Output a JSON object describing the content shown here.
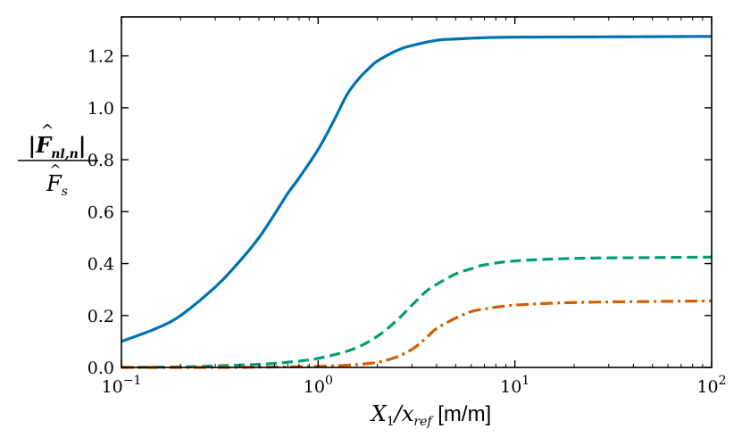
{
  "chart_data": {
    "type": "line",
    "xscale": "log",
    "xlim": [
      0.1,
      100
    ],
    "ylim": [
      0.0,
      1.35
    ],
    "xlabel": {
      "main": "X",
      "sub1": "1",
      "slash": "/x",
      "sub2": "ref",
      "unit": "[m/m]"
    },
    "ylabel": {
      "numerator": "|F",
      "numerator_sub": "nl,n",
      "numerator_close": "|",
      "denominator": "F",
      "denominator_sub": "s"
    },
    "x_ticks": [
      {
        "value": 0.1,
        "base": "10",
        "exp": "−1"
      },
      {
        "value": 1,
        "base": "10",
        "exp": "0"
      },
      {
        "value": 10,
        "base": "10",
        "exp": "1"
      },
      {
        "value": 100,
        "base": "10",
        "exp": "2"
      }
    ],
    "y_ticks": [
      {
        "value": 0.0,
        "label": "0.0"
      },
      {
        "value": 0.2,
        "label": "0.2"
      },
      {
        "value": 0.4,
        "label": "0.4"
      },
      {
        "value": 0.6,
        "label": "0.6"
      },
      {
        "value": 0.8,
        "label": "0.8"
      },
      {
        "value": 1.0,
        "label": "1.0"
      },
      {
        "value": 1.2,
        "label": "1.2"
      }
    ],
    "series": [
      {
        "name": "solid-blue",
        "color": "#0072b2",
        "style": "solid",
        "x": [
          0.1,
          0.15,
          0.2,
          0.3,
          0.4,
          0.5,
          0.6,
          0.7,
          0.8,
          1.0,
          1.2,
          1.4,
          1.6,
          1.8,
          2.0,
          2.5,
          3.0,
          4.0,
          5.0,
          7.0,
          10.0,
          20.0,
          50.0,
          100.0
        ],
        "y": [
          0.1,
          0.15,
          0.2,
          0.31,
          0.41,
          0.5,
          0.59,
          0.67,
          0.73,
          0.84,
          0.95,
          1.05,
          1.11,
          1.15,
          1.18,
          1.22,
          1.24,
          1.26,
          1.265,
          1.27,
          1.272,
          1.273,
          1.274,
          1.275
        ]
      },
      {
        "name": "dashed-green",
        "color": "#009e73",
        "style": "dashed",
        "x": [
          0.1,
          0.2,
          0.3,
          0.5,
          0.7,
          1.0,
          1.5,
          2.0,
          2.5,
          3.0,
          3.5,
          4.0,
          5.0,
          6.0,
          7.0,
          10.0,
          20.0,
          50.0,
          100.0
        ],
        "y": [
          0.0,
          0.002,
          0.006,
          0.012,
          0.02,
          0.035,
          0.07,
          0.12,
          0.18,
          0.24,
          0.29,
          0.32,
          0.36,
          0.38,
          0.395,
          0.41,
          0.42,
          0.423,
          0.425
        ]
      },
      {
        "name": "dashdot-orange",
        "color": "#d55e00",
        "style": "dashdot",
        "x": [
          0.1,
          0.3,
          0.5,
          1.0,
          1.5,
          2.0,
          2.5,
          3.0,
          3.5,
          4.0,
          5.0,
          6.0,
          7.0,
          10.0,
          20.0,
          50.0,
          100.0
        ],
        "y": [
          0.0,
          0.0,
          0.001,
          0.004,
          0.01,
          0.02,
          0.04,
          0.07,
          0.11,
          0.15,
          0.19,
          0.215,
          0.225,
          0.24,
          0.25,
          0.254,
          0.256
        ]
      }
    ]
  }
}
